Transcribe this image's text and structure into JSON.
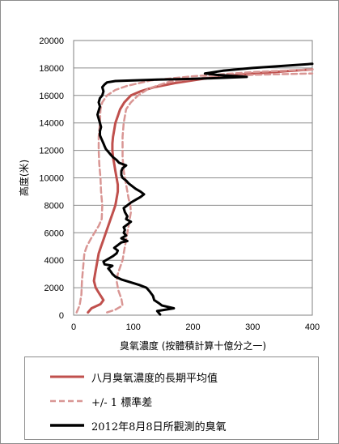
{
  "chart_data": {
    "type": "line",
    "title": "",
    "xlabel": "臭氧濃度 (按體積計算十億分之一)",
    "ylabel": "高度(米)",
    "xlim": [
      0,
      400
    ],
    "ylim": [
      0,
      20000
    ],
    "x_ticks": [
      0,
      100,
      200,
      300,
      400
    ],
    "y_ticks": [
      0,
      2000,
      4000,
      6000,
      8000,
      10000,
      12000,
      14000,
      16000,
      18000,
      20000
    ],
    "grid": "horizontal",
    "legend_position": "bottom",
    "series": [
      {
        "name": "八月臭氧濃度的長期平均值",
        "color": "#c0504d",
        "style": "solid",
        "points": [
          [
            24,
            200
          ],
          [
            30,
            500
          ],
          [
            45,
            800
          ],
          [
            50,
            1100
          ],
          [
            44,
            1500
          ],
          [
            37,
            2000
          ],
          [
            34,
            2500
          ],
          [
            36,
            3000
          ],
          [
            38,
            3500
          ],
          [
            40,
            4000
          ],
          [
            42,
            4500
          ],
          [
            46,
            5000
          ],
          [
            50,
            5500
          ],
          [
            54,
            6000
          ],
          [
            58,
            6500
          ],
          [
            62,
            7000
          ],
          [
            66,
            7500
          ],
          [
            70,
            8000
          ],
          [
            72,
            8500
          ],
          [
            74,
            9000
          ],
          [
            74,
            9500
          ],
          [
            72,
            10000
          ],
          [
            70,
            10500
          ],
          [
            68,
            11000
          ],
          [
            66,
            11500
          ],
          [
            65,
            12000
          ],
          [
            65,
            12500
          ],
          [
            66,
            13000
          ],
          [
            68,
            13500
          ],
          [
            70,
            14000
          ],
          [
            74,
            14500
          ],
          [
            78,
            15000
          ],
          [
            85,
            15500
          ],
          [
            96,
            16000
          ],
          [
            112,
            16300
          ],
          [
            135,
            16600
          ],
          [
            170,
            16900
          ],
          [
            230,
            17300
          ],
          [
            300,
            17600
          ],
          [
            400,
            17900
          ]
        ]
      },
      {
        "name": "+/- 1 標準差",
        "color": "#d99694",
        "style": "dashed",
        "points": [
          [
            5,
            200
          ],
          [
            10,
            700
          ],
          [
            13,
            1500
          ],
          [
            14,
            2500
          ],
          [
            16,
            3500
          ],
          [
            18,
            4500
          ],
          [
            22,
            5000
          ],
          [
            28,
            5500
          ],
          [
            35,
            6000
          ],
          [
            42,
            6500
          ],
          [
            47,
            7000
          ],
          [
            48,
            8000
          ],
          [
            46,
            9000
          ],
          [
            45,
            10000
          ],
          [
            43,
            11000
          ],
          [
            42,
            12000
          ],
          [
            42,
            13000
          ],
          [
            44,
            14000
          ],
          [
            45,
            15000
          ],
          [
            48,
            15500
          ],
          [
            56,
            16000
          ],
          [
            70,
            16400
          ],
          [
            90,
            16700
          ],
          [
            130,
            17100
          ],
          [
            200,
            17400
          ],
          [
            300,
            17700
          ],
          [
            400,
            17900
          ]
        ]
      },
      {
        "name": "+/- 1 標準差",
        "color": "#d99694",
        "style": "dashed",
        "points": [
          [
            56,
            200
          ],
          [
            70,
            400
          ],
          [
            82,
            700
          ],
          [
            80,
            1200
          ],
          [
            75,
            1800
          ],
          [
            72,
            2500
          ],
          [
            74,
            3000
          ],
          [
            78,
            3500
          ],
          [
            82,
            4000
          ],
          [
            84,
            4500
          ],
          [
            86,
            5000
          ],
          [
            88,
            5500
          ],
          [
            90,
            6000
          ],
          [
            92,
            6500
          ],
          [
            94,
            7000
          ],
          [
            96,
            7500
          ],
          [
            95,
            8000
          ],
          [
            92,
            8500
          ],
          [
            90,
            9000
          ],
          [
            88,
            9500
          ],
          [
            86,
            10000
          ],
          [
            84,
            10500
          ],
          [
            83,
            11000
          ],
          [
            82,
            11500
          ],
          [
            82,
            12000
          ],
          [
            82,
            13000
          ],
          [
            84,
            14000
          ],
          [
            88,
            15000
          ],
          [
            96,
            15500
          ],
          [
            108,
            16000
          ],
          [
            126,
            16500
          ],
          [
            160,
            17000
          ],
          [
            220,
            17300
          ],
          [
            300,
            17500
          ],
          [
            400,
            17600
          ]
        ]
      },
      {
        "name": "2012年8月8日所觀測的臭氧",
        "color": "#000000",
        "style": "solid",
        "points": [
          [
            145,
            50
          ],
          [
            140,
            300
          ],
          [
            168,
            500
          ],
          [
            148,
            700
          ],
          [
            142,
            900
          ],
          [
            135,
            1100
          ],
          [
            133,
            1400
          ],
          [
            128,
            1700
          ],
          [
            122,
            2000
          ],
          [
            110,
            2200
          ],
          [
            95,
            2400
          ],
          [
            80,
            2600
          ],
          [
            70,
            2800
          ],
          [
            65,
            3000
          ],
          [
            62,
            3200
          ],
          [
            58,
            3400
          ],
          [
            65,
            3600
          ],
          [
            52,
            3700
          ],
          [
            50,
            3900
          ],
          [
            58,
            4100
          ],
          [
            66,
            4300
          ],
          [
            72,
            4500
          ],
          [
            74,
            4700
          ],
          [
            68,
            4900
          ],
          [
            74,
            5100
          ],
          [
            80,
            5300
          ],
          [
            90,
            5400
          ],
          [
            80,
            5600
          ],
          [
            88,
            5800
          ],
          [
            84,
            6000
          ],
          [
            86,
            6200
          ],
          [
            84,
            6400
          ],
          [
            90,
            6600
          ],
          [
            96,
            6800
          ],
          [
            88,
            7000
          ],
          [
            90,
            7200
          ],
          [
            86,
            7500
          ],
          [
            84,
            7800
          ],
          [
            90,
            8000
          ],
          [
            96,
            8200
          ],
          [
            104,
            8400
          ],
          [
            112,
            8600
          ],
          [
            118,
            8800
          ],
          [
            112,
            9000
          ],
          [
            104,
            9200
          ],
          [
            98,
            9400
          ],
          [
            92,
            9600
          ],
          [
            88,
            9800
          ],
          [
            82,
            10000
          ],
          [
            80,
            10200
          ],
          [
            80,
            10500
          ],
          [
            82,
            10700
          ],
          [
            88,
            10900
          ],
          [
            76,
            11100
          ],
          [
            72,
            11300
          ],
          [
            66,
            11500
          ],
          [
            62,
            11700
          ],
          [
            58,
            11900
          ],
          [
            54,
            12100
          ],
          [
            52,
            12300
          ],
          [
            50,
            12500
          ],
          [
            48,
            12700
          ],
          [
            46,
            12900
          ],
          [
            44,
            13100
          ],
          [
            44,
            13400
          ],
          [
            46,
            13700
          ],
          [
            44,
            14000
          ],
          [
            42,
            14300
          ],
          [
            40,
            14600
          ],
          [
            42,
            14900
          ],
          [
            44,
            15200
          ],
          [
            42,
            15500
          ],
          [
            44,
            15800
          ],
          [
            48,
            16000
          ],
          [
            50,
            16300
          ],
          [
            48,
            16600
          ],
          [
            52,
            16800
          ],
          [
            56,
            16950
          ],
          [
            70,
            17050
          ],
          [
            100,
            17100
          ],
          [
            140,
            17150
          ],
          [
            190,
            17200
          ],
          [
            230,
            17250
          ],
          [
            260,
            17300
          ],
          [
            290,
            17350
          ],
          [
            240,
            17500
          ],
          [
            220,
            17600
          ],
          [
            250,
            17800
          ],
          [
            300,
            18000
          ],
          [
            350,
            18150
          ],
          [
            400,
            18300
          ]
        ]
      }
    ]
  },
  "legend": {
    "items": [
      {
        "label": "八月臭氧濃度的長期平均值"
      },
      {
        "label": "+/- 1 標準差"
      },
      {
        "label": "2012年8月8日所觀測的臭氧"
      }
    ]
  }
}
